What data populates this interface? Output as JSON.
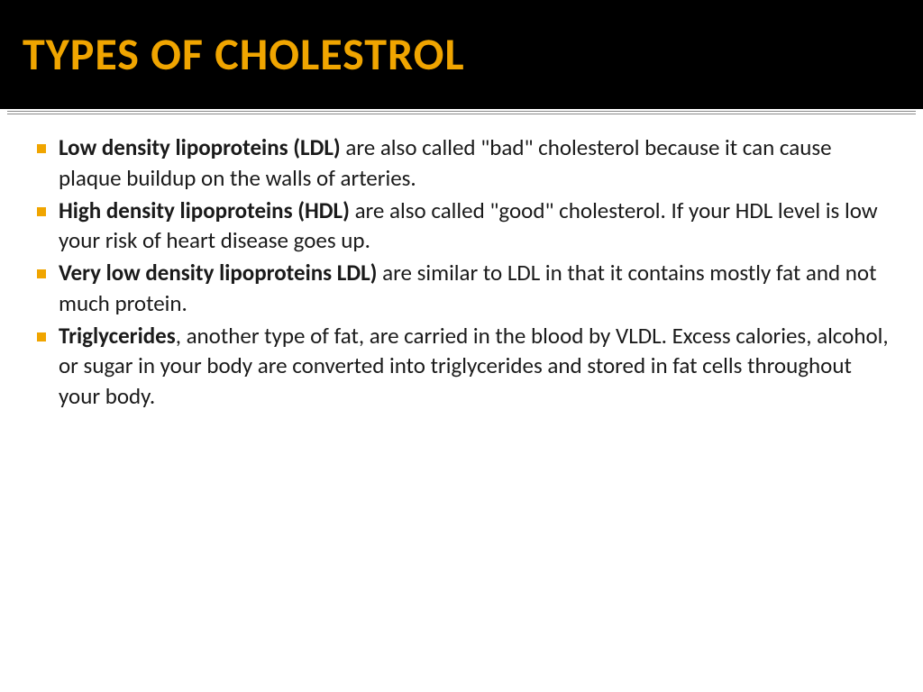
{
  "slide": {
    "title": "TYPES OF CHOLESTROL",
    "title_color": "#f0a500",
    "title_bg": "#000000",
    "title_fontsize": 50,
    "bullet_color": "#f0a500",
    "body_color": "#1a1a1a",
    "body_fontsize": 25,
    "background": "#ffffff",
    "items": [
      {
        "bold": "Low density lipoproteins (LDL) ",
        "rest": "are also called \"bad\" cholesterol because it can cause plaque buildup on the walls of arteries."
      },
      {
        "bold": " High density lipoproteins (HDL) ",
        "rest": "are also called \"good\" cholesterol. If your HDL level is low your risk of heart disease goes up."
      },
      {
        "bold": " Very low density lipoproteins LDL) ",
        "rest": "are similar to LDL in that it contains mostly fat and not much protein."
      },
      {
        "bold": "Triglycerides",
        "rest": ", another type of fat, are carried in the blood by VLDL. Excess calories, alcohol, or sugar in your body are converted into triglycerides and stored in fat cells throughout your body."
      }
    ]
  }
}
